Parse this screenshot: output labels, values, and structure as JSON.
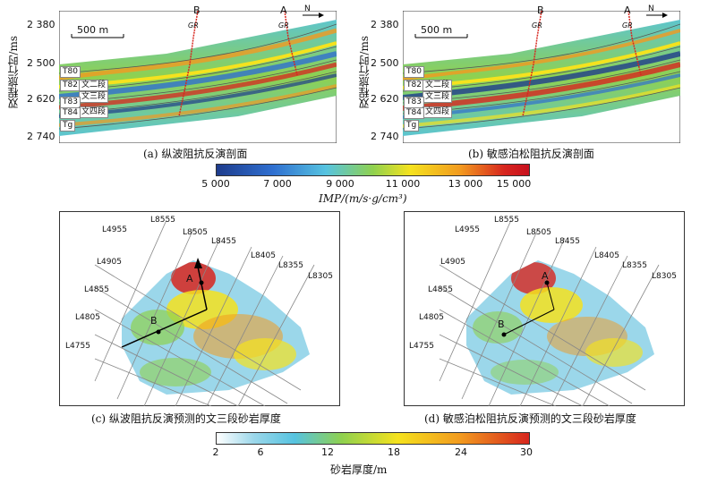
{
  "panel_a": {
    "y_axis_label": "双程旅行时/ms",
    "y_ticks": [
      "2 380",
      "2 500",
      "2 620",
      "2 740"
    ],
    "scale_bar": "500 m",
    "wells": [
      "B",
      "A"
    ],
    "log_label": "GR",
    "north": "N",
    "horizons": [
      "T80",
      "T82",
      "T83",
      "T84",
      "Tg"
    ],
    "intervals": [
      "文二段",
      "文三段",
      "文四段"
    ],
    "caption": "(a) 纵波阻抗反演剖面"
  },
  "panel_b": {
    "y_axis_label": "双程旅行时/ms",
    "y_ticks": [
      "2 380",
      "2 500",
      "2 620",
      "2 740"
    ],
    "scale_bar": "500 m",
    "wells": [
      "B",
      "A"
    ],
    "log_label": "GR",
    "north": "N",
    "horizons": [
      "T80",
      "T82",
      "T83",
      "T84",
      "Tg"
    ],
    "intervals": [
      "文二段",
      "文三段",
      "文四段"
    ],
    "caption": "(b) 敏感泊松阻抗反演剖面"
  },
  "colorbar_impedance": {
    "ticks": [
      "5 000",
      "7 000",
      "9 000",
      "11 000",
      "13 000",
      "15 000"
    ],
    "label": "IMP/(m/s·g/cm³)"
  },
  "panel_c": {
    "line_labels": [
      "L4955",
      "L8555",
      "L8505",
      "L8455",
      "L8405",
      "L8355",
      "L8305",
      "L4905",
      "L4855",
      "L4805",
      "L4755"
    ],
    "wells": [
      "A",
      "B"
    ],
    "caption": "(c) 纵波阻抗反演预测的文三段砂岩厚度"
  },
  "panel_d": {
    "line_labels": [
      "L4955",
      "L8555",
      "L8505",
      "L8455",
      "L8405",
      "L8355",
      "L8305",
      "L4905",
      "L4855",
      "L4805",
      "L4755"
    ],
    "wells": [
      "A",
      "B"
    ],
    "caption": "(d) 敏感泊松阻抗反演预测的文三段砂岩厚度"
  },
  "colorbar_thickness": {
    "ticks": [
      "2",
      "6",
      "12",
      "18",
      "24",
      "30"
    ],
    "label": "砂岩厚度/m"
  },
  "colors": {
    "deep_blue": "#1e3c8c",
    "blue": "#2f6fd0",
    "cyan": "#56c3e0",
    "green": "#8fd14f",
    "yellow": "#f5e21e",
    "orange": "#f29a1f",
    "red": "#d7261e"
  }
}
